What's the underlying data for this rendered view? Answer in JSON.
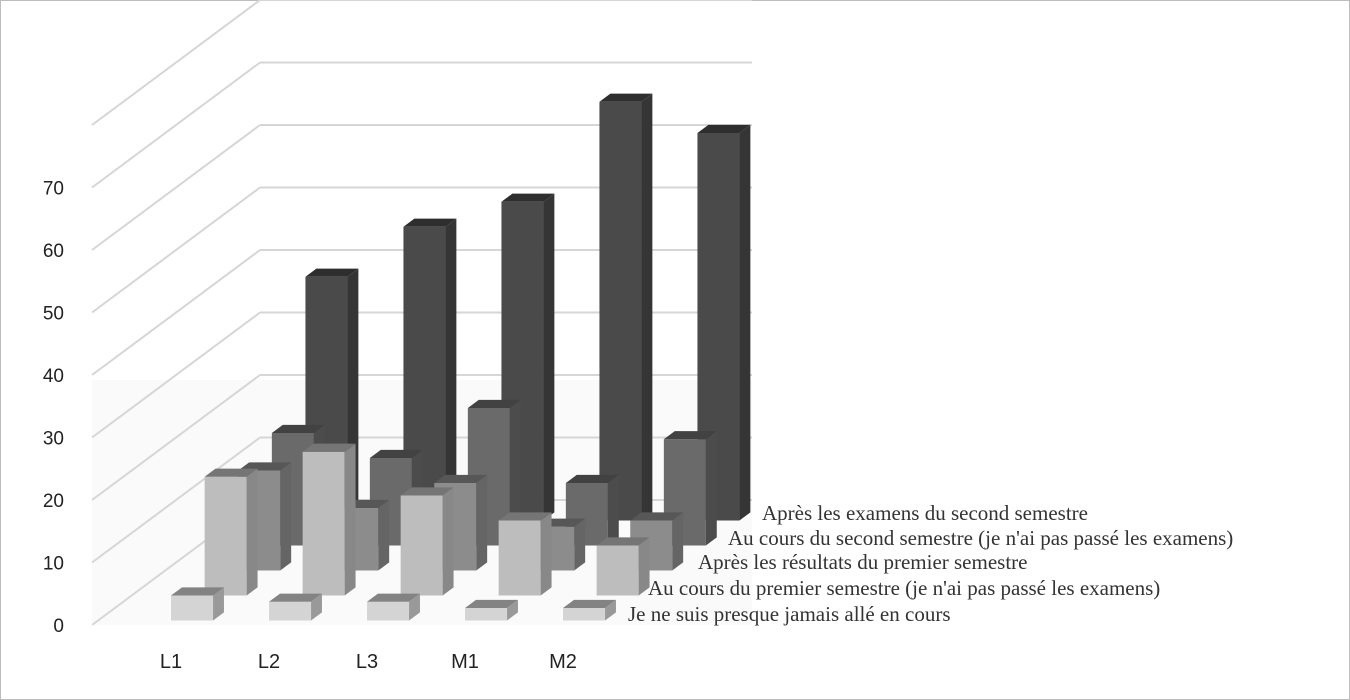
{
  "chart_data": {
    "type": "bar",
    "subtype": "3d-column",
    "categories": [
      "L1",
      "L2",
      "L3",
      "M1",
      "M2"
    ],
    "series": [
      {
        "name": "Je ne suis presque jamais allé en cours",
        "values": [
          4,
          3,
          3,
          2,
          2
        ],
        "color": "#d4d4d4"
      },
      {
        "name": "Au cours du premier semestre (je n'ai pas passé les examens)",
        "values": [
          19,
          23,
          16,
          12,
          8
        ],
        "color": "#bdbdbd"
      },
      {
        "name": "Après les résultats du premier semestre",
        "values": [
          16,
          10,
          14,
          7,
          8
        ],
        "color": "#8c8c8c"
      },
      {
        "name": "Au cours du second semestre (je n'ai pas passé les examens)",
        "values": [
          18,
          14,
          22,
          10,
          17
        ],
        "color": "#6a6a6a"
      },
      {
        "name": "Après les examens du second semestre",
        "values": [
          39,
          47,
          51,
          67,
          62
        ],
        "color": "#4a4a4a"
      }
    ],
    "y_ticks": [
      "0",
      "10",
      "20",
      "30",
      "40",
      "50",
      "60",
      "70"
    ],
    "ylim": [
      0,
      80
    ],
    "grid": true,
    "legend": "right-side depth labels"
  }
}
